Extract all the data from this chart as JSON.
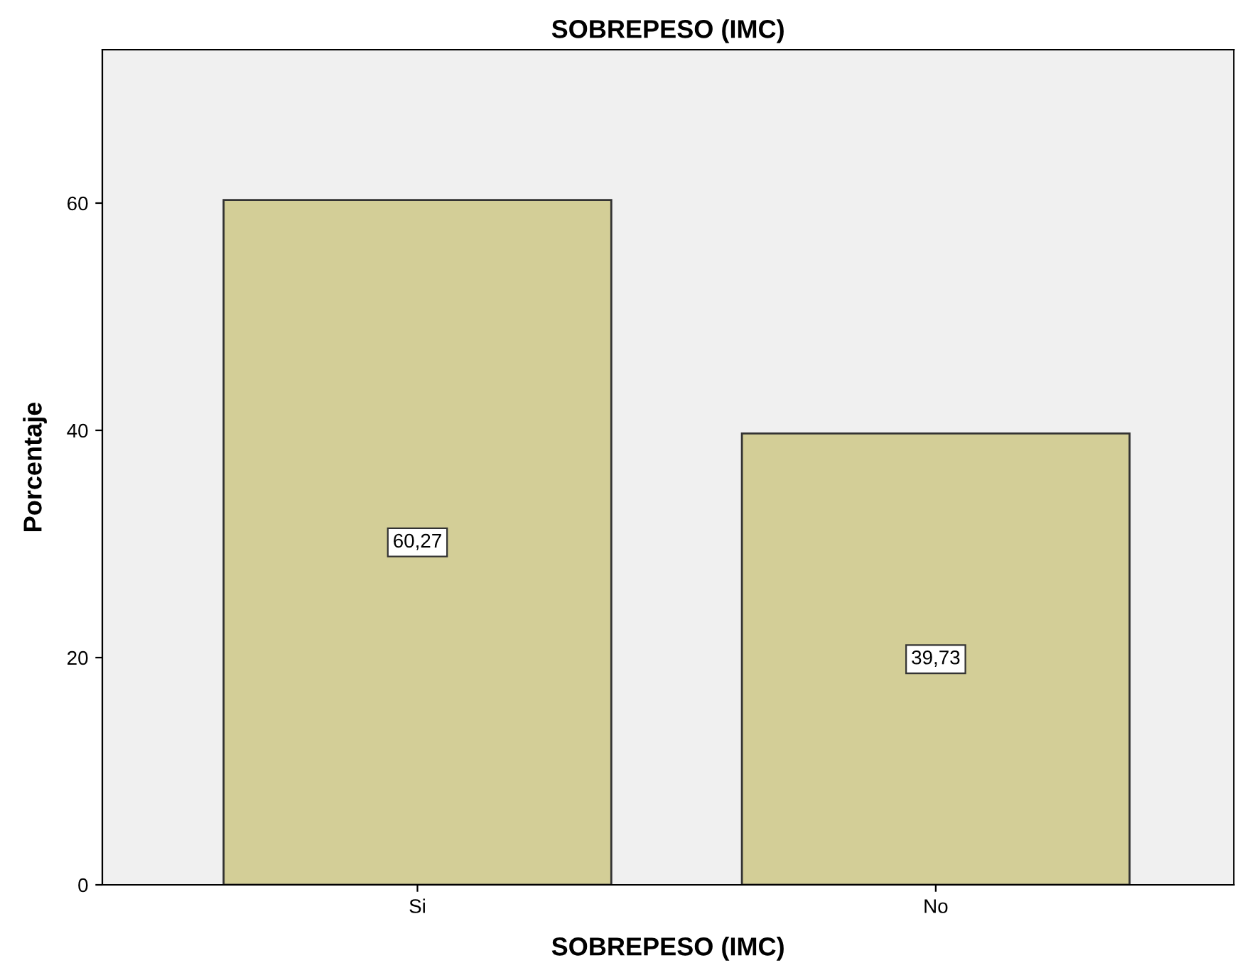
{
  "chart_data": {
    "type": "bar",
    "title": "SOBREPESO (IMC)",
    "xlabel": "SOBREPESO (IMC)",
    "ylabel": "Porcentaje",
    "categories": [
      "Si",
      "No"
    ],
    "values": [
      60.27,
      39.73
    ],
    "value_labels": [
      "60,27",
      "39,73"
    ],
    "color": "#d3ce97",
    "ylim": [
      0,
      73.5
    ],
    "yticks": [
      0,
      20,
      40,
      60
    ],
    "grid": false,
    "legend": false
  }
}
